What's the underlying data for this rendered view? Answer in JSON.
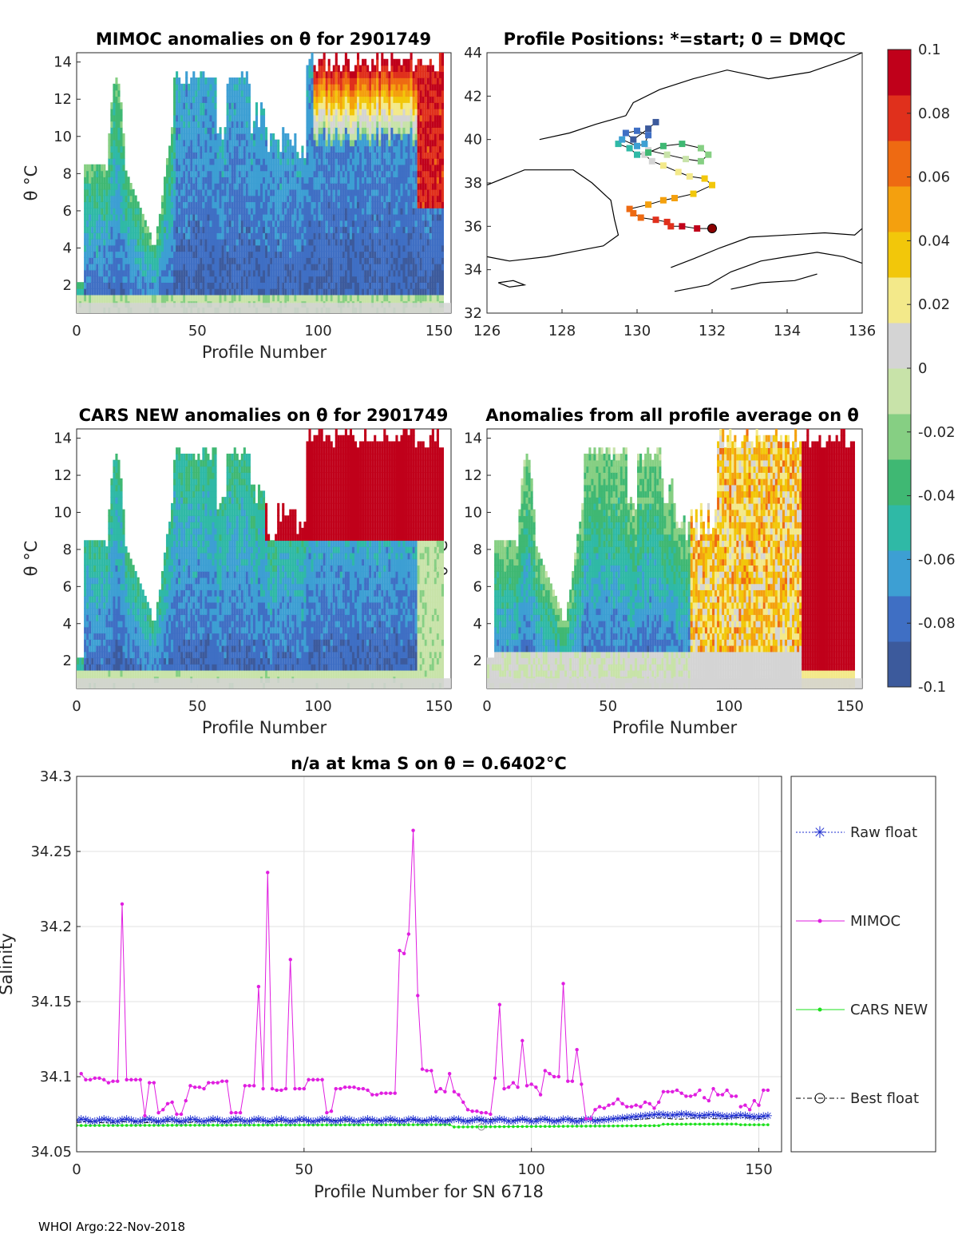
{
  "footer": "WHOI Argo:22-Nov-2018",
  "colorbar": {
    "ticks": [
      "0.1",
      "0.08",
      "0.06",
      "0.04",
      "0.02",
      "0",
      "-0.02",
      "-0.04",
      "-0.06",
      "-0.08",
      "-0.1"
    ],
    "min": -0.1,
    "max": 0.1,
    "colors": [
      "#3c5a9c",
      "#3f6fc4",
      "#3d9fd3",
      "#2fb9a6",
      "#3fb873",
      "#86cf83",
      "#c8e3a9",
      "#d4d4d4",
      "#f3e98a",
      "#f2c70a",
      "#f4a00e",
      "#ee6a12",
      "#e0301c",
      "#c0001a"
    ]
  },
  "colors": {
    "raw_float": "#1f2fd0",
    "mimoc": "#e01ee0",
    "cars_new": "#1ee01e",
    "best_float": "#000000",
    "grid": "#e2e2e2"
  },
  "chart_data": [
    {
      "type": "heatmap",
      "title": "MIMOC anomalies on θ  for 2901749",
      "xlabel": "Profile Number",
      "ylabel": "θ °C",
      "xlim": [
        0,
        155
      ],
      "ylim": [
        0.5,
        14.5
      ],
      "xticks": [
        "0",
        "50",
        "100",
        "150"
      ],
      "yticks": [
        "2",
        "4",
        "6",
        "8",
        "10",
        "12",
        "14"
      ]
    },
    {
      "type": "scatter",
      "title": "Profile Positions: *=start; 0 = DMQC",
      "xlim": [
        126,
        136
      ],
      "ylim": [
        32,
        44
      ],
      "xticks": [
        "126",
        "128",
        "130",
        "132",
        "134",
        "136"
      ],
      "yticks": [
        "32",
        "34",
        "36",
        "38",
        "40",
        "42",
        "44"
      ],
      "track": {
        "lon": [
          132.0,
          131.6,
          131.2,
          130.9,
          130.8,
          130.5,
          130.1,
          129.9,
          129.8,
          130.3,
          130.7,
          131.0,
          131.5,
          132.0,
          131.8,
          131.4,
          131.1,
          130.7,
          130.4,
          130.2,
          130.3,
          130.8,
          131.3,
          131.7,
          131.9,
          131.7,
          131.2,
          130.7,
          130.3,
          130.0,
          129.8,
          129.5,
          129.6,
          130.0,
          130.2,
          130.3,
          130.0,
          129.7,
          129.9,
          130.3,
          130.5
        ],
        "lat": [
          35.9,
          35.9,
          36.0,
          36.0,
          36.2,
          36.3,
          36.4,
          36.6,
          36.8,
          37.0,
          37.2,
          37.3,
          37.5,
          37.9,
          38.2,
          38.3,
          38.5,
          38.8,
          39.0,
          39.3,
          39.5,
          39.3,
          39.1,
          39.0,
          39.3,
          39.6,
          39.8,
          39.7,
          39.4,
          39.3,
          39.6,
          39.8,
          40.0,
          39.7,
          39.8,
          40.2,
          40.4,
          40.3,
          40.0,
          40.5,
          40.8
        ]
      }
    },
    {
      "type": "heatmap",
      "title": "CARS NEW anomalies on θ for 2901749",
      "xlabel": "Profile Number",
      "ylabel": "θ °C",
      "xlim": [
        0,
        155
      ],
      "ylim": [
        0.5,
        14.5
      ],
      "xticks": [
        "0",
        "50",
        "100",
        "150"
      ],
      "yticks": [
        "2",
        "4",
        "6",
        "8",
        "10",
        "12",
        "14"
      ]
    },
    {
      "type": "heatmap",
      "title": "Anomalies from all profile average on θ",
      "xlabel": "Profile Number",
      "ylabel": "θ °C",
      "xlim": [
        0,
        155
      ],
      "ylim": [
        0.5,
        14.5
      ],
      "xticks": [
        "0",
        "50",
        "100",
        "150"
      ],
      "yticks": [
        "2",
        "4",
        "6",
        "8",
        "10",
        "12",
        "14"
      ]
    },
    {
      "type": "line",
      "title": "n/a at kma S on θ = 0.6402°C",
      "xlabel": "Profile Number for SN 6718",
      "ylabel": "Salinity",
      "xlim": [
        0,
        155
      ],
      "ylim": [
        34.05,
        34.3
      ],
      "xticks": [
        "0",
        "50",
        "100",
        "150"
      ],
      "yticks": [
        "34.05",
        "34.1",
        "34.15",
        "34.2",
        "34.25",
        "34.3"
      ],
      "legend": [
        "Raw float",
        "MIMOC",
        "CARS NEW",
        "Best float"
      ],
      "legend_position": "outside-right",
      "series": [
        {
          "name": "MIMOC",
          "x": [
            1,
            2,
            3,
            4,
            5,
            6,
            7,
            8,
            9,
            10,
            11,
            12,
            13,
            14,
            15,
            16,
            17,
            18,
            19,
            20,
            21,
            22,
            23,
            24,
            25,
            26,
            27,
            28,
            29,
            30,
            31,
            32,
            33,
            34,
            35,
            36,
            37,
            38,
            39,
            40,
            41,
            42,
            43,
            44,
            45,
            46,
            47,
            48,
            49,
            50,
            51,
            52,
            53,
            54,
            55,
            56,
            57,
            58,
            59,
            60,
            61,
            62,
            63,
            64,
            65,
            66,
            67,
            68,
            69,
            70,
            71,
            72,
            73,
            74,
            75,
            76,
            77,
            78,
            79,
            80,
            81,
            82,
            83,
            84,
            85,
            86,
            87,
            88,
            89,
            90,
            91,
            92,
            93,
            94,
            95,
            96,
            97,
            98,
            99,
            100,
            101,
            102,
            103,
            104,
            105,
            106,
            107,
            108,
            109,
            110,
            111,
            112,
            113,
            114,
            115,
            116,
            117,
            118,
            119,
            120,
            121,
            122,
            123,
            124,
            125,
            126,
            127,
            128,
            129,
            130,
            131,
            132,
            133,
            134,
            135,
            136,
            137,
            138,
            139,
            140,
            141,
            142,
            143,
            144,
            145,
            146,
            147,
            148,
            149,
            150,
            151,
            152
          ],
          "y": [
            34.102,
            34.098,
            34.098,
            34.099,
            34.099,
            34.098,
            34.096,
            34.097,
            34.097,
            34.215,
            34.098,
            34.098,
            34.098,
            34.098,
            34.074,
            34.096,
            34.096,
            34.076,
            34.078,
            34.082,
            34.083,
            34.075,
            34.075,
            34.084,
            34.094,
            34.093,
            34.093,
            34.092,
            34.096,
            34.096,
            34.096,
            34.097,
            34.097,
            34.076,
            34.076,
            34.076,
            34.094,
            34.094,
            34.094,
            34.16,
            34.092,
            34.236,
            34.092,
            34.091,
            34.091,
            34.092,
            34.178,
            34.092,
            34.092,
            34.092,
            34.098,
            34.098,
            34.098,
            34.098,
            34.076,
            34.077,
            34.092,
            34.092,
            34.093,
            34.093,
            34.093,
            34.092,
            34.092,
            34.091,
            34.088,
            34.088,
            34.089,
            34.089,
            34.089,
            34.089,
            34.184,
            34.182,
            34.195,
            34.264,
            34.154,
            34.105,
            34.104,
            34.104,
            34.09,
            34.092,
            34.09,
            34.102,
            34.09,
            34.088,
            34.083,
            34.078,
            34.077,
            34.077,
            34.076,
            34.076,
            34.075,
            34.099,
            34.148,
            34.092,
            34.093,
            34.096,
            34.093,
            34.124,
            34.094,
            34.095,
            34.093,
            34.088,
            34.104,
            34.102,
            34.1,
            34.1,
            34.162,
            34.097,
            34.097,
            34.118,
            34.095,
            34.072,
            34.072,
            34.078,
            34.08,
            34.079,
            34.081,
            34.082,
            34.085,
            34.082,
            34.08,
            34.08,
            34.081,
            34.08,
            34.083,
            34.082,
            34.079,
            34.083,
            34.09,
            34.09,
            34.09,
            34.091,
            34.089,
            34.087,
            34.087,
            34.088,
            34.091,
            34.086,
            34.084,
            34.092,
            34.088,
            34.088,
            34.091,
            34.087,
            34.087,
            34.08,
            34.081,
            34.078,
            34.084,
            34.081,
            34.091,
            34.091
          ]
        },
        {
          "name": "Raw float",
          "x_range": [
            0,
            152
          ],
          "y_start": 34.0705,
          "y_end": 34.0735,
          "y_mid": 34.071,
          "rise_from": 115,
          "rise_to": 128,
          "rise_level": 34.075
        },
        {
          "name": "CARS NEW",
          "x_range": [
            0,
            152
          ],
          "y_start": 34.0675,
          "y_end": 34.0685,
          "dip_from": 83,
          "dip_to": 128,
          "dip_level": 34.0665
        },
        {
          "name": "Best float",
          "x_range": [
            0,
            152
          ],
          "y_start": 34.0695,
          "y_end": 34.0725
        }
      ]
    }
  ]
}
